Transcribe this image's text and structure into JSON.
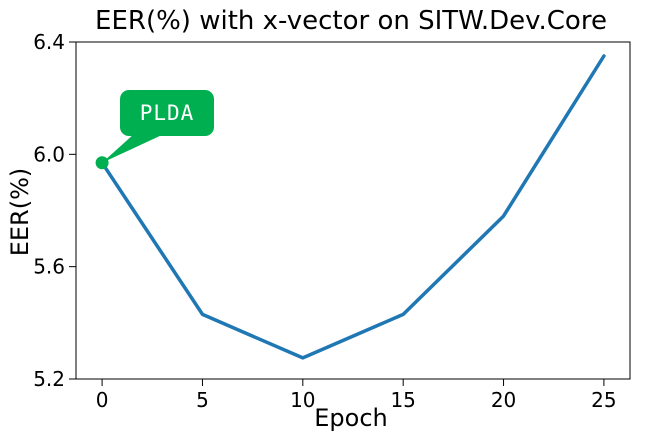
{
  "chart_data": {
    "type": "line",
    "title": "EER(%) with x-vector on SITW.Dev.Core",
    "xlabel": "Epoch",
    "ylabel": "EER(%)",
    "xlim": [
      -1.3,
      26.3
    ],
    "ylim": [
      5.2,
      6.4
    ],
    "x_ticks": [
      0,
      5,
      10,
      15,
      20,
      25
    ],
    "x_tick_labels": [
      "0",
      "5",
      "10",
      "15",
      "20",
      "25"
    ],
    "y_ticks": [
      5.2,
      5.6,
      6.0,
      6.4
    ],
    "y_tick_labels": [
      "5.2",
      "5.6",
      "6.0",
      "6.4"
    ],
    "grid": false,
    "series": [
      {
        "color": "#1f77b4",
        "x": [
          0,
          5,
          10,
          15,
          20,
          25
        ],
        "y": [
          5.97,
          5.43,
          5.275,
          5.43,
          5.78,
          6.35
        ]
      }
    ],
    "annotations": [
      {
        "text": "PLDA",
        "point_x": 0,
        "point_y": 5.97,
        "color": "#00b050"
      }
    ]
  }
}
